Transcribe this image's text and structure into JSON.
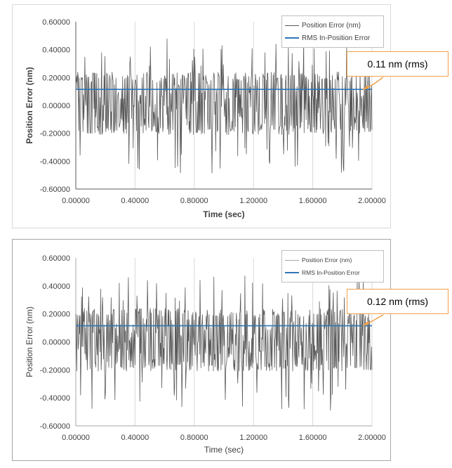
{
  "colors": {
    "noise": "#595959",
    "rms": "#2e75b6",
    "callout_border": "#f0a04a"
  },
  "chart_data": [
    {
      "type": "line",
      "title": "",
      "xlabel": "Time (sec)",
      "ylabel": "Position Error (nm)",
      "xlim": [
        0.0,
        2.0
      ],
      "ylim": [
        -0.6,
        0.6
      ],
      "x_ticks": [
        "0.00000",
        "0.40000",
        "0.80000",
        "1.20000",
        "1.60000",
        "2.00000"
      ],
      "y_ticks": [
        "0.60000",
        "0.40000",
        "0.20000",
        "0.00000",
        "-0.20000",
        "-0.40000",
        "-0.60000"
      ],
      "grid": "vertical",
      "legend_position": "top-right",
      "series": [
        {
          "name": "Position Error (nm)",
          "style": "noise",
          "x_range": [
            0.0,
            2.0
          ],
          "peak_max": 0.48,
          "peak_min": -0.49,
          "typical_band": [
            -0.2,
            0.24
          ]
        },
        {
          "name": "RMS In-Position Error",
          "style": "constant",
          "x": [
            0.0,
            2.0
          ],
          "values": [
            0.115,
            0.115
          ]
        }
      ],
      "annotation": "0.11 nm (rms)"
    },
    {
      "type": "line",
      "title": "",
      "xlabel": "Time (sec)",
      "ylabel": "Position Error (nm)",
      "xlim": [
        0.0,
        2.0
      ],
      "ylim": [
        -0.6,
        0.6
      ],
      "x_ticks": [
        "0.00000",
        "0.40000",
        "0.80000",
        "1.20000",
        "1.60000",
        "2.00000"
      ],
      "y_ticks": [
        "0.60000",
        "0.40000",
        "0.20000",
        "0.00000",
        "-0.20000",
        "-0.40000",
        "-0.60000"
      ],
      "grid": "vertical",
      "legend_position": "top-right",
      "series": [
        {
          "name": "Position Error (nm)",
          "style": "noise",
          "x_range": [
            0.0,
            2.0
          ],
          "peak_max": 0.48,
          "peak_min": -0.49,
          "typical_band": [
            -0.2,
            0.24
          ]
        },
        {
          "name": "RMS In-Position Error",
          "style": "constant",
          "x": [
            0.0,
            2.0
          ],
          "values": [
            0.115,
            0.115
          ]
        }
      ],
      "annotation": "0.12 nm (rms)"
    }
  ]
}
